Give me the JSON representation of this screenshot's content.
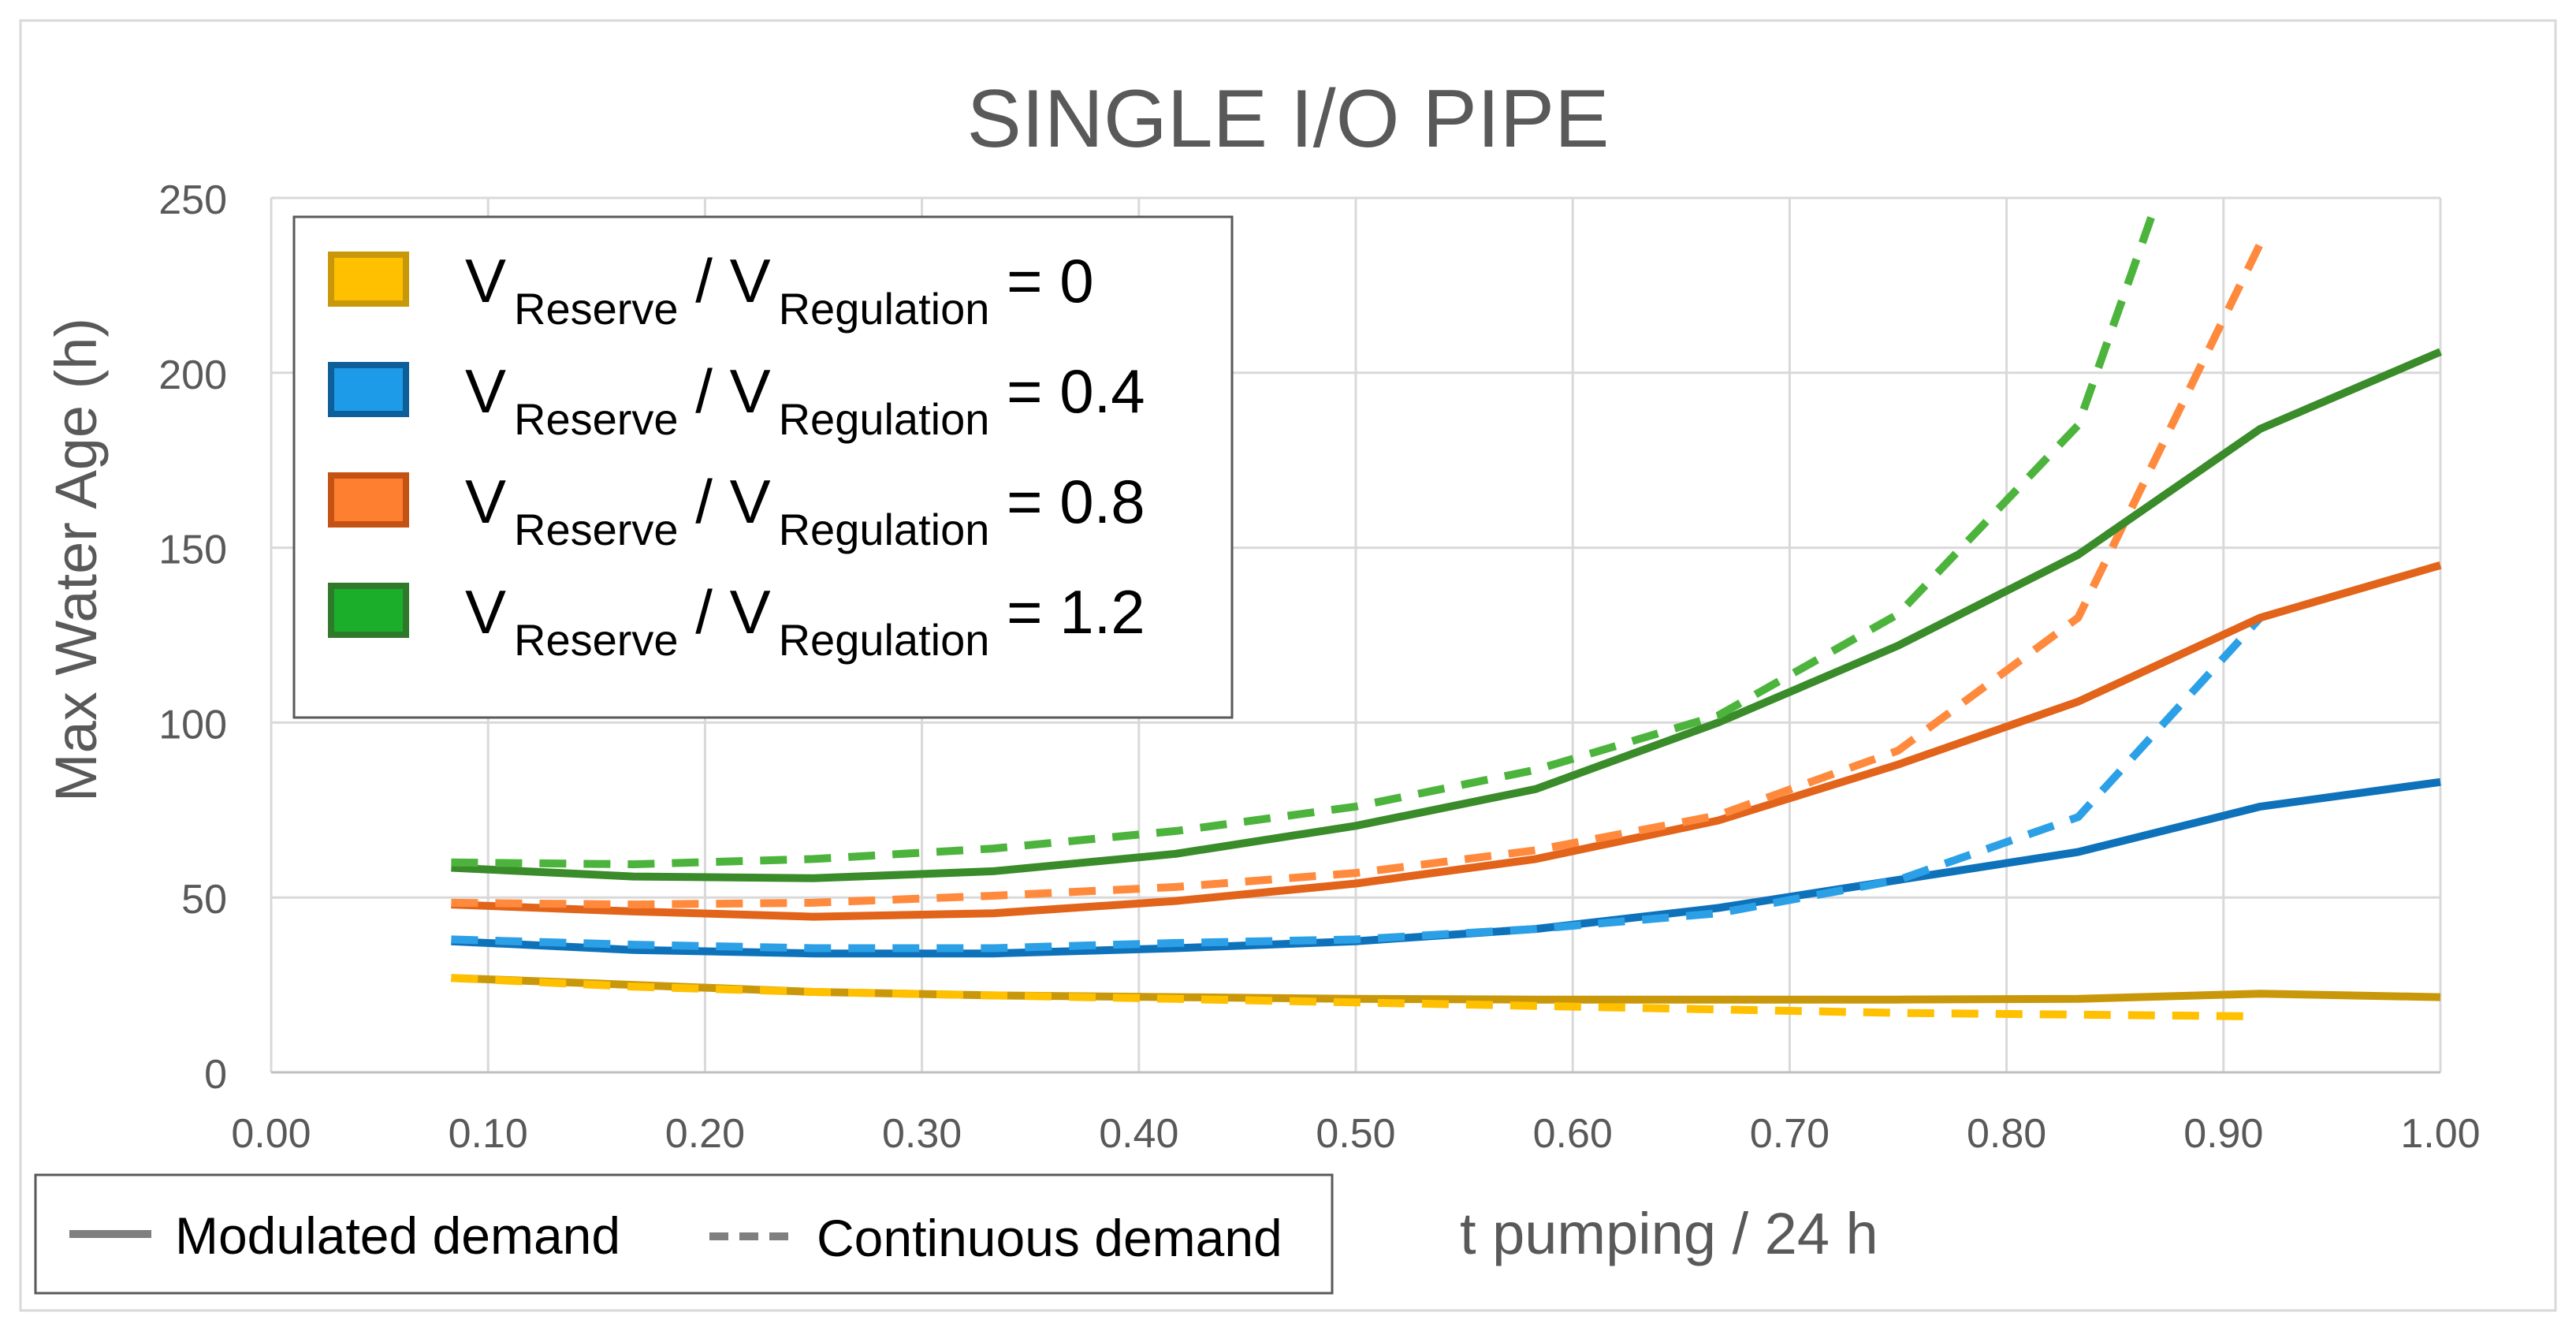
{
  "chart_data": {
    "type": "line",
    "title": "SINGLE I/O PIPE",
    "xlabel": "t pumping / 24 h",
    "ylabel": "Max Water Age (h)",
    "xlim": [
      0,
      1
    ],
    "ylim": [
      0,
      250
    ],
    "x_ticks": [
      "0.00",
      "0.10",
      "0.20",
      "0.30",
      "0.40",
      "0.50",
      "0.60",
      "0.70",
      "0.80",
      "0.90",
      "1.00"
    ],
    "y_ticks": [
      "0",
      "50",
      "100",
      "150",
      "200",
      "250"
    ],
    "grid": true,
    "legend": {
      "placement": "top-left",
      "var": "V",
      "sub1": "Reserve",
      "sub2": "Regulation",
      "entries": [
        {
          "value": "= 0",
          "color": "#FFC000",
          "edge": "#C9980A"
        },
        {
          "value": "= 0.4",
          "color": "#1E9BE8",
          "edge": "#0E5E99"
        },
        {
          "value": "= 0.8",
          "color": "#FF7F30",
          "edge": "#C45212"
        },
        {
          "value": "= 1.2",
          "color": "#1AAE2B",
          "edge": "#2F7A2A"
        }
      ]
    },
    "linestyle_legend": {
      "placement": "bottom-left",
      "solid": "Modulated demand",
      "dashed": "Continuous demand"
    },
    "series": [
      {
        "group": 0,
        "style": "solid",
        "color": "#C9980A",
        "x": [
          0.083,
          0.167,
          0.25,
          0.333,
          0.417,
          0.5,
          0.583,
          0.667,
          0.75,
          0.833,
          0.917,
          1.0
        ],
        "y": [
          27,
          25,
          23,
          22,
          21.5,
          21,
          20.8,
          20.8,
          20.8,
          21,
          22.5,
          21.5
        ]
      },
      {
        "group": 0,
        "style": "dashed",
        "color": "#FFC000",
        "x": [
          0.083,
          0.167,
          0.25,
          0.333,
          0.417,
          0.5,
          0.583,
          0.667,
          0.75,
          0.833,
          0.917
        ],
        "y": [
          27,
          24.5,
          23,
          22,
          21,
          20,
          19,
          18,
          17,
          16.5,
          16
        ]
      },
      {
        "group": 1,
        "style": "solid",
        "color": "#0E72BA",
        "x": [
          0.083,
          0.167,
          0.25,
          0.333,
          0.417,
          0.5,
          0.583,
          0.667,
          0.75,
          0.833,
          0.917,
          1.0
        ],
        "y": [
          37.5,
          35,
          34,
          34,
          35.5,
          37.5,
          41,
          47,
          55,
          63,
          76,
          83
        ]
      },
      {
        "group": 1,
        "style": "dashed",
        "color": "#2CA0E6",
        "x": [
          0.083,
          0.167,
          0.25,
          0.333,
          0.417,
          0.5,
          0.583,
          0.667,
          0.75,
          0.833,
          0.917
        ],
        "y": [
          38,
          36.5,
          35.5,
          35.5,
          37,
          38,
          41,
          45.5,
          55,
          73,
          130
        ]
      },
      {
        "group": 2,
        "style": "solid",
        "color": "#E2631A",
        "x": [
          0.083,
          0.167,
          0.25,
          0.333,
          0.417,
          0.5,
          0.583,
          0.667,
          0.75,
          0.833,
          0.917,
          1.0
        ],
        "y": [
          48,
          46,
          44.5,
          45.5,
          49,
          54,
          61,
          72,
          88,
          106,
          130,
          145
        ]
      },
      {
        "group": 2,
        "style": "dashed",
        "color": "#FF8A3D",
        "x": [
          0.083,
          0.167,
          0.25,
          0.333,
          0.417,
          0.5,
          0.583,
          0.667,
          0.75,
          0.833,
          0.917
        ],
        "y": [
          48.5,
          48,
          48.5,
          50.5,
          53,
          57,
          63.5,
          73.5,
          92,
          130,
          237
        ]
      },
      {
        "group": 3,
        "style": "solid",
        "color": "#3A8B2A",
        "x": [
          0.083,
          0.167,
          0.25,
          0.333,
          0.417,
          0.5,
          0.583,
          0.667,
          0.75,
          0.833,
          0.917,
          1.0
        ],
        "y": [
          58.5,
          56,
          55.5,
          57.5,
          62.5,
          70.5,
          81,
          100,
          122,
          148,
          184,
          206
        ]
      },
      {
        "group": 3,
        "style": "dashed",
        "color": "#4CB43C",
        "x": [
          0.083,
          0.167,
          0.25,
          0.333,
          0.417,
          0.5,
          0.583,
          0.667,
          0.75,
          0.833,
          0.867
        ],
        "y": [
          60,
          59.5,
          61,
          64,
          69,
          76,
          86.5,
          102,
          131,
          185,
          245
        ]
      }
    ]
  }
}
